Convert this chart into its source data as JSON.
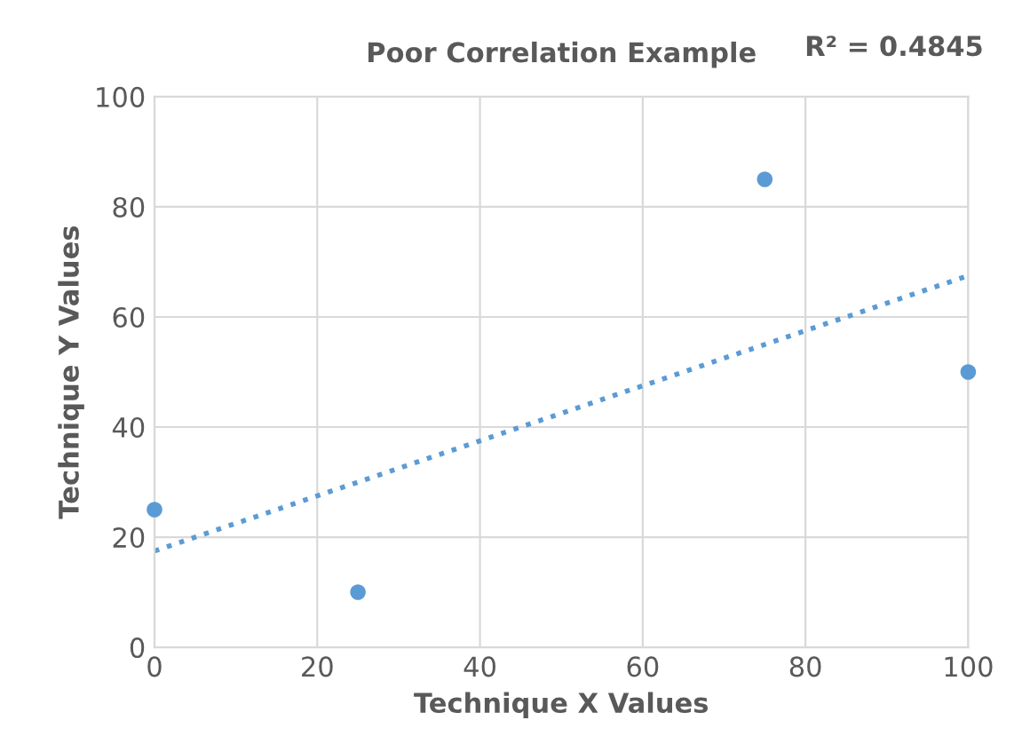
{
  "chart_data": {
    "type": "scatter",
    "title": "Poor Correlation Example",
    "xlabel": "Technique X Values",
    "ylabel": "Technique Y Values",
    "annotations": [
      "R² = 0.4845"
    ],
    "x": [
      0,
      25,
      75,
      100
    ],
    "series": [
      {
        "color": "#5b9bd5",
        "values": [
          25,
          10,
          85,
          50
        ],
        "marker": "circle"
      },
      {
        "type": "line",
        "x": [
          0,
          100
        ],
        "color": "#5b9bd5",
        "values": [
          17.5,
          67.5
        ],
        "line_style": "dotted"
      }
    ],
    "xlim": [
      0,
      100
    ],
    "ylim": [
      0,
      100
    ],
    "xticks": [
      0,
      20,
      40,
      60,
      80,
      100
    ],
    "yticks": [
      0,
      20,
      40,
      60,
      80,
      100
    ],
    "grid": true,
    "legend": false
  }
}
